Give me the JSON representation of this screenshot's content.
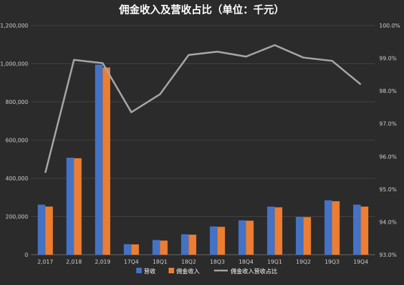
{
  "chart_data": {
    "type": "bar",
    "title": "佣金收入及营收占比（单位：千元）",
    "categories": [
      "2,017",
      "2,018",
      "2,019",
      "17Q4",
      "18Q1",
      "18Q2",
      "18Q3",
      "18Q4",
      "19Q1",
      "19Q2",
      "19Q3",
      "19Q4"
    ],
    "series": [
      {
        "name": "营收",
        "kind": "bar",
        "axis": "left",
        "color": "#4472c4",
        "values": [
          262000,
          508000,
          995000,
          55000,
          77000,
          107000,
          148000,
          180000,
          252000,
          198000,
          285000,
          262000
        ]
      },
      {
        "name": "佣金收入",
        "kind": "bar",
        "axis": "left",
        "color": "#ed7d31",
        "values": [
          252000,
          505000,
          980000,
          54000,
          74000,
          105000,
          146000,
          178000,
          248000,
          197000,
          280000,
          252000
        ]
      },
      {
        "name": "佣金收入营收占比",
        "kind": "line",
        "axis": "right",
        "color": "#a5a5a5",
        "values": [
          95.5,
          98.95,
          98.85,
          97.35,
          97.9,
          99.1,
          99.2,
          99.05,
          99.4,
          99.02,
          98.92,
          98.2
        ]
      }
    ],
    "y_left": {
      "min": 0,
      "max": 1200000,
      "ticks": [
        0,
        200000,
        400000,
        600000,
        800000,
        1000000,
        1200000
      ],
      "tick_labels": [
        "0",
        "200,000",
        "400,000",
        "600,000",
        "800,000",
        "1,000,000",
        "1,200,000"
      ]
    },
    "y_right": {
      "min": 93.0,
      "max": 100.0,
      "ticks": [
        93,
        94,
        95,
        96,
        97,
        98,
        99,
        100
      ],
      "tick_labels": [
        "93.0%",
        "94.0%",
        "95.0%",
        "96.0%",
        "97.0%",
        "98.0%",
        "99.0%",
        "100.0%"
      ]
    },
    "grid": true,
    "legend_position": "bottom"
  },
  "colors": {
    "background": "#2b2b2b",
    "grid": "#4a4a4a",
    "text": "#cfcfcf"
  }
}
